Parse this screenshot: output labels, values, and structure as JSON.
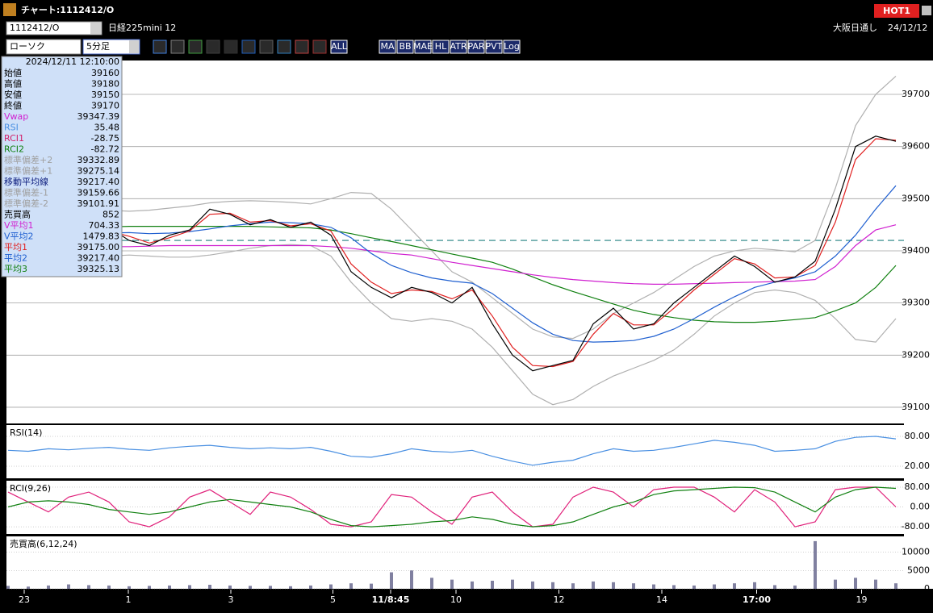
{
  "window": {
    "title": "チャート:1112412/O",
    "hot": "HOT1",
    "symbol": "1112412/O",
    "name": "日経225mini 12",
    "market": "大阪日通し",
    "date": "24/12/12",
    "chart_style": "ローソク",
    "interval": "5分足"
  },
  "toolbar": {
    "labels": [
      "ALL",
      "MA",
      "BB",
      "MAE",
      "HL",
      "ATR",
      "PAR",
      "PVT",
      "Log"
    ]
  },
  "info_panel": {
    "datetime": "2024/12/11 12:10:00",
    "rows": [
      {
        "label": "始値",
        "value": "39160",
        "color": "#000000"
      },
      {
        "label": "高値",
        "value": "39180",
        "color": "#000000"
      },
      {
        "label": "安値",
        "value": "39150",
        "color": "#000000"
      },
      {
        "label": "終値",
        "value": "39170",
        "color": "#000000"
      },
      {
        "label": "Vwap",
        "value": "39347.39",
        "color": "#d020d0"
      },
      {
        "label": "RSI",
        "value": "35.48",
        "color": "#4a90e2"
      },
      {
        "label": "RCI1",
        "value": "-28.75",
        "color": "#d0206a"
      },
      {
        "label": "RCI2",
        "value": "-82.72",
        "color": "#108010"
      },
      {
        "label": "標準偏差+2",
        "value": "39332.89",
        "color": "#a0a0a0"
      },
      {
        "label": "標準偏差+1",
        "value": "39275.14",
        "color": "#a0a0a0"
      },
      {
        "label": "移動平均線",
        "value": "39217.40",
        "color": "#102080"
      },
      {
        "label": "標準偏差-1",
        "value": "39159.66",
        "color": "#a0a0a0"
      },
      {
        "label": "標準偏差-2",
        "value": "39101.91",
        "color": "#a0a0a0"
      },
      {
        "label": "売買高",
        "value": "852",
        "color": "#000000"
      },
      {
        "label": "V平均1",
        "value": "704.33",
        "color": "#d020d0"
      },
      {
        "label": "V平均2",
        "value": "1479.83",
        "color": "#2060d0"
      },
      {
        "label": "平均1",
        "value": "39175.00",
        "color": "#e02020"
      },
      {
        "label": "平均2",
        "value": "39217.40",
        "color": "#2060d0"
      },
      {
        "label": "平均3",
        "value": "39325.13",
        "color": "#108010"
      }
    ]
  },
  "chart_data": [
    {
      "type": "line",
      "xlim": [
        0,
        44
      ],
      "ylim": [
        39069,
        39765
      ],
      "yticks": [
        39100,
        39200,
        39300,
        39400,
        39500,
        39600,
        39700
      ],
      "grid": true,
      "hline": 39420,
      "hline_color": "#208080",
      "xticks": [
        {
          "value": 0.8,
          "label": "23"
        },
        {
          "value": 5.96,
          "label": "1"
        },
        {
          "value": 11.04,
          "label": "3"
        },
        {
          "value": 16.1,
          "label": "5"
        },
        {
          "value": 18.96,
          "label": "11/8:45"
        },
        {
          "value": 22.2,
          "label": "10"
        },
        {
          "value": 27.3,
          "label": "12"
        },
        {
          "value": 32.4,
          "label": "14"
        },
        {
          "value": 37.1,
          "label": "17:00"
        },
        {
          "value": 42.3,
          "label": "19"
        }
      ],
      "series": [
        {
          "color": "#b0b0b0",
          "values": [
            39490,
            39488,
            39485,
            39482,
            39480,
            39478,
            39476,
            39478,
            39482,
            39486,
            39492,
            39495,
            39496,
            39495,
            39493,
            39490,
            39500,
            39512,
            39510,
            39480,
            39440,
            39400,
            39360,
            39340,
            39310,
            39280,
            39250,
            39235,
            39232,
            39250,
            39280,
            39300,
            39320,
            39345,
            39370,
            39390,
            39400,
            39405,
            39402,
            39398,
            39420,
            39520,
            39640,
            39700,
            39735
          ]
        },
        {
          "color": "#b0b0b0",
          "values": [
            39400,
            39392,
            39385,
            39385,
            39388,
            39390,
            39392,
            39390,
            39388,
            39388,
            39392,
            39398,
            39405,
            39410,
            39412,
            39410,
            39390,
            39340,
            39300,
            39270,
            39265,
            39270,
            39265,
            39250,
            39215,
            39170,
            39125,
            39105,
            39115,
            39140,
            39160,
            39175,
            39190,
            39210,
            39240,
            39275,
            39300,
            39320,
            39325,
            39320,
            39305,
            39270,
            39230,
            39225,
            39270
          ]
        },
        {
          "color": "#108010",
          "values": [
            39440,
            39442,
            39444,
            39445,
            39446,
            39446,
            39447,
            39447,
            39447,
            39447,
            39447,
            39447,
            39447,
            39446,
            39445,
            39444,
            39440,
            39433,
            39425,
            39418,
            39410,
            39402,
            39394,
            39386,
            39378,
            39365,
            39350,
            39335,
            39322,
            39310,
            39298,
            39286,
            39278,
            39272,
            39267,
            39264,
            39263,
            39263,
            39265,
            39268,
            39272,
            39285,
            39300,
            39330,
            39372
          ]
        },
        {
          "color": "#d020d0",
          "values": [
            39408,
            39408,
            39408,
            39408,
            39408,
            39408,
            39408,
            39409,
            39410,
            39410,
            39410,
            39410,
            39410,
            39410,
            39410,
            39410,
            39408,
            39405,
            39400,
            39395,
            39392,
            39385,
            39378,
            39372,
            39366,
            39360,
            39354,
            39349,
            39345,
            39342,
            39339,
            39337,
            39336,
            39336,
            39337,
            39338,
            39339,
            39340,
            39341,
            39342,
            39345,
            39370,
            39410,
            39440,
            39450
          ]
        },
        {
          "color": "#2060d0",
          "values": [
            39450,
            39445,
            39438,
            39434,
            39433,
            39434,
            39435,
            39433,
            39434,
            39437,
            39442,
            39448,
            39452,
            39455,
            39454,
            39452,
            39445,
            39425,
            39395,
            39372,
            39358,
            39348,
            39342,
            39338,
            39318,
            39290,
            39262,
            39240,
            39228,
            39225,
            39226,
            39228,
            39236,
            39250,
            39270,
            39292,
            39312,
            39330,
            39340,
            39348,
            39360,
            39390,
            39430,
            39480,
            39525
          ]
        },
        {
          "color": "#e02020",
          "values": [
            39460,
            39445,
            39420,
            39418,
            39425,
            39438,
            39428,
            39415,
            39425,
            39438,
            39470,
            39472,
            39455,
            39458,
            39448,
            39452,
            39438,
            39375,
            39340,
            39318,
            39325,
            39322,
            39308,
            39325,
            39275,
            39215,
            39180,
            39178,
            39188,
            39240,
            39280,
            39258,
            39258,
            39290,
            39325,
            39355,
            39385,
            39375,
            39348,
            39350,
            39372,
            39455,
            39575,
            39615,
            39612
          ]
        },
        {
          "color": "#000000",
          "values": [
            39470,
            39440,
            39410,
            39420,
            39430,
            39445,
            39420,
            39410,
            39430,
            39440,
            39480,
            39470,
            39450,
            39460,
            39445,
            39455,
            39430,
            39360,
            39330,
            39310,
            39330,
            39320,
            39300,
            39330,
            39260,
            39200,
            39170,
            39180,
            39190,
            39260,
            39290,
            39250,
            39260,
            39300,
            39330,
            39360,
            39390,
            39370,
            39340,
            39350,
            39380,
            39480,
            39600,
            39620,
            39610
          ]
        }
      ]
    },
    {
      "type": "line",
      "title": "RSI(14)",
      "xlim": [
        0,
        44
      ],
      "ylim": [
        -4.3,
        102.7
      ],
      "yticks": [
        {
          "value": 80,
          "label": "80.00"
        },
        {
          "value": 20,
          "label": "20.00"
        }
      ],
      "series": [
        {
          "color": "#4a90e2",
          "values": [
            52,
            50,
            55,
            53,
            56,
            58,
            54,
            52,
            57,
            60,
            62,
            58,
            55,
            57,
            55,
            58,
            50,
            40,
            38,
            45,
            55,
            50,
            48,
            52,
            40,
            30,
            22,
            28,
            32,
            45,
            55,
            50,
            52,
            58,
            65,
            72,
            68,
            62,
            50,
            52,
            55,
            70,
            78,
            80,
            75
          ]
        }
      ]
    },
    {
      "type": "line",
      "title": "RCI(9,26)",
      "xlim": [
        0,
        44
      ],
      "ylim": [
        -109,
        106
      ],
      "yticks": [
        {
          "value": 80,
          "label": "80.00"
        },
        {
          "value": 0,
          "label": "0.00"
        },
        {
          "value": -80,
          "label": "-80.00"
        }
      ],
      "series": [
        {
          "color": "#e0207a",
          "values": [
            60,
            20,
            -20,
            40,
            60,
            20,
            -60,
            -80,
            -40,
            40,
            70,
            20,
            -30,
            60,
            40,
            -10,
            -70,
            -80,
            -60,
            50,
            40,
            -20,
            -70,
            40,
            60,
            -20,
            -80,
            -70,
            40,
            80,
            60,
            0,
            70,
            80,
            80,
            40,
            -20,
            70,
            20,
            -80,
            -60,
            70,
            80,
            80,
            0
          ]
        },
        {
          "color": "#108010",
          "values": [
            0,
            20,
            25,
            20,
            10,
            -10,
            -20,
            -30,
            -20,
            0,
            20,
            30,
            20,
            10,
            0,
            -20,
            -50,
            -75,
            -80,
            -75,
            -70,
            -60,
            -55,
            -40,
            -50,
            -70,
            -80,
            -75,
            -60,
            -30,
            0,
            20,
            50,
            65,
            70,
            75,
            80,
            78,
            60,
            20,
            -20,
            40,
            70,
            80,
            75
          ]
        }
      ]
    },
    {
      "type": "bar",
      "title": "売買高(6,12,24)",
      "xlim": [
        0,
        44
      ],
      "ylim": [
        0,
        14300
      ],
      "yticks": [
        0,
        5000,
        10000
      ],
      "color": "#8080a0",
      "values": [
        800,
        600,
        900,
        1200,
        1000,
        900,
        700,
        800,
        900,
        1000,
        1100,
        900,
        800,
        800,
        700,
        900,
        1200,
        1500,
        1400,
        4500,
        5000,
        3000,
        2500,
        2000,
        2200,
        2500,
        2000,
        1800,
        1500,
        2000,
        1800,
        1500,
        1200,
        1000,
        900,
        1200,
        1500,
        1800,
        1000,
        900,
        13000,
        2500,
        3000,
        2500,
        1500
      ]
    }
  ]
}
